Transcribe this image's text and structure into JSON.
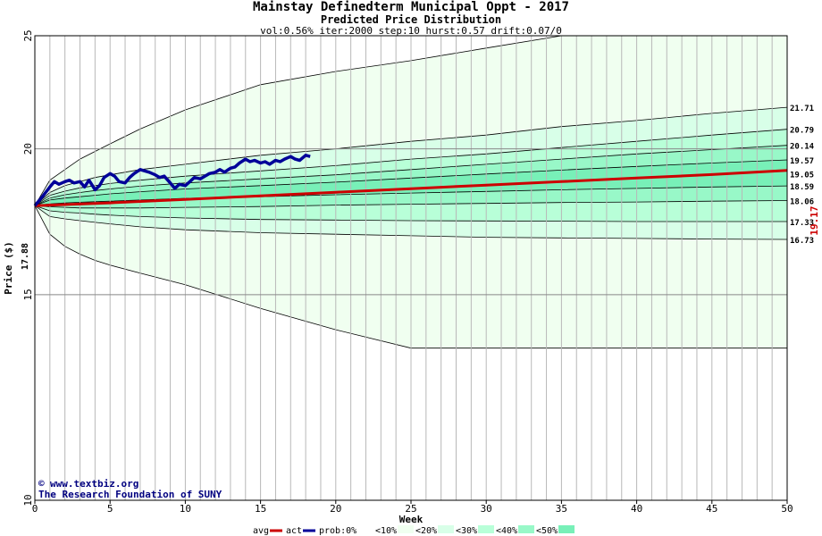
{
  "chart_data": {
    "type": "area",
    "title": "Mainstay Definedterm Municipal Oppt - 2017",
    "subtitle": "Predicted Price Distribution",
    "params": "vol:0.56% iter:2000 step:10 hurst:0.57 drift:0.07/0",
    "xlabel": "Week",
    "ylabel": "Price ($)",
    "xlim": [
      0,
      50
    ],
    "ylim": [
      10,
      25
    ],
    "log_scale_y": true,
    "x_ticks": [
      "0",
      "5",
      "10",
      "15",
      "20",
      "25",
      "30",
      "35",
      "40",
      "45",
      "50"
    ],
    "y_ticks": [
      "10",
      "15",
      "20",
      "25"
    ],
    "start_price_label": "17.88",
    "start_price": 17.88,
    "end_avg_label": "19.17",
    "right_labels": [
      "21.71",
      "20.79",
      "20.14",
      "19.57",
      "19.05",
      "18.59",
      "18.06",
      "17.33",
      "16.73"
    ],
    "band_colors": [
      "#f0fff0",
      "#d8ffe8",
      "#b8ffd8",
      "#98f8c8",
      "#78f0b8"
    ],
    "band_weeks": [
      0,
      1,
      2,
      3,
      4,
      5,
      7,
      10,
      15,
      20,
      25,
      30,
      35,
      40,
      45,
      50
    ],
    "bands": [
      {
        "upper": [
          17.88,
          18.8,
          19.2,
          19.6,
          19.9,
          20.2,
          20.8,
          21.6,
          22.7,
          23.3,
          23.8,
          24.4,
          25.0,
          25.0,
          25.0,
          25.0
        ],
        "lower": [
          17.88,
          16.9,
          16.5,
          16.25,
          16.05,
          15.9,
          15.65,
          15.3,
          14.6,
          14.0,
          13.5,
          13.5,
          13.5,
          13.5,
          13.5,
          13.5
        ]
      },
      {
        "upper": [
          17.88,
          18.35,
          18.6,
          18.75,
          18.9,
          19.0,
          19.2,
          19.4,
          19.75,
          20.0,
          20.3,
          20.55,
          20.9,
          21.15,
          21.45,
          21.71
        ],
        "lower": [
          17.88,
          17.5,
          17.42,
          17.36,
          17.3,
          17.25,
          17.15,
          17.05,
          16.95,
          16.9,
          16.85,
          16.8,
          16.78,
          16.76,
          16.74,
          16.73
        ]
      },
      {
        "upper": [
          17.88,
          18.25,
          18.4,
          18.52,
          18.6,
          18.68,
          18.8,
          18.95,
          19.15,
          19.35,
          19.6,
          19.8,
          20.05,
          20.3,
          20.55,
          20.79
        ],
        "lower": [
          17.88,
          17.7,
          17.65,
          17.62,
          17.58,
          17.55,
          17.5,
          17.45,
          17.4,
          17.38,
          17.36,
          17.35,
          17.34,
          17.33,
          17.33,
          17.33
        ]
      },
      {
        "upper": [
          17.88,
          18.15,
          18.27,
          18.35,
          18.42,
          18.48,
          18.58,
          18.7,
          18.85,
          19.0,
          19.2,
          19.4,
          19.6,
          19.8,
          19.97,
          20.14
        ],
        "lower": [
          17.88,
          17.84,
          17.82,
          17.8,
          17.8,
          17.8,
          17.8,
          17.82,
          17.85,
          17.9,
          17.93,
          17.96,
          17.99,
          18.01,
          18.04,
          18.06
        ]
      },
      {
        "upper": [
          17.88,
          18.08,
          18.15,
          18.2,
          18.25,
          18.3,
          18.38,
          18.48,
          18.6,
          18.73,
          18.88,
          19.03,
          19.18,
          19.32,
          19.45,
          19.57
        ],
        "lower": [
          17.88,
          17.94,
          17.98,
          18.0,
          18.02,
          18.04,
          18.08,
          18.14,
          18.2,
          18.27,
          18.33,
          18.39,
          18.45,
          18.5,
          18.55,
          18.59
        ]
      }
    ],
    "series": [
      {
        "name": "avg",
        "color": "#cc0000",
        "x": [
          0,
          5,
          10,
          15,
          20,
          25,
          30,
          35,
          40,
          45,
          50
        ],
        "values": [
          17.88,
          17.98,
          18.1,
          18.23,
          18.36,
          18.49,
          18.62,
          18.75,
          18.88,
          19.01,
          19.17
        ]
      },
      {
        "name": "act",
        "color": "#000099",
        "x": [
          0,
          0.5,
          1,
          1.3,
          1.6,
          2,
          2.3,
          2.6,
          3,
          3.3,
          3.6,
          4,
          4.3,
          4.6,
          5,
          5.3,
          5.6,
          6,
          6.3,
          6.6,
          7,
          7.3,
          7.6,
          8,
          8.3,
          8.6,
          9,
          9.3,
          9.6,
          10,
          10.3,
          10.6,
          11,
          11.3,
          11.6,
          12,
          12.3,
          12.6,
          13,
          13.3,
          13.6,
          14,
          14.3,
          14.6,
          15,
          15.3,
          15.6,
          16,
          16.3,
          16.6,
          17,
          17.3,
          17.6,
          18,
          18.3
        ],
        "values": [
          17.88,
          18.2,
          18.55,
          18.75,
          18.65,
          18.75,
          18.8,
          18.7,
          18.75,
          18.55,
          18.8,
          18.45,
          18.6,
          18.9,
          19.05,
          18.95,
          18.75,
          18.7,
          18.9,
          19.05,
          19.2,
          19.15,
          19.1,
          19.0,
          18.9,
          18.95,
          18.7,
          18.5,
          18.65,
          18.6,
          18.75,
          18.9,
          18.85,
          18.95,
          19.05,
          19.1,
          19.2,
          19.1,
          19.25,
          19.3,
          19.45,
          19.6,
          19.5,
          19.55,
          19.45,
          19.5,
          19.4,
          19.55,
          19.5,
          19.6,
          19.7,
          19.6,
          19.55,
          19.75,
          19.7
        ]
      }
    ]
  },
  "watermark": {
    "line1": "www.textbiz.org",
    "line2": "The Research Foundation of SUNY",
    "copyright_symbol": "©"
  },
  "legend": {
    "items": [
      {
        "label": "avg",
        "color": "#cc0000",
        "kind": "line"
      },
      {
        "label": "act",
        "color": "#000099",
        "kind": "line"
      },
      {
        "label": "prob:0%",
        "color": "#ffffff",
        "kind": "box"
      },
      {
        "label": "<10%",
        "color": "#f0fff0",
        "kind": "box"
      },
      {
        "label": "<20%",
        "color": "#d8ffe8",
        "kind": "box"
      },
      {
        "label": "<30%",
        "color": "#b8ffd8",
        "kind": "box"
      },
      {
        "label": "<40%",
        "color": "#98f8c8",
        "kind": "box"
      },
      {
        "label": "<50%",
        "color": "#78f0b8",
        "kind": "box"
      }
    ]
  }
}
